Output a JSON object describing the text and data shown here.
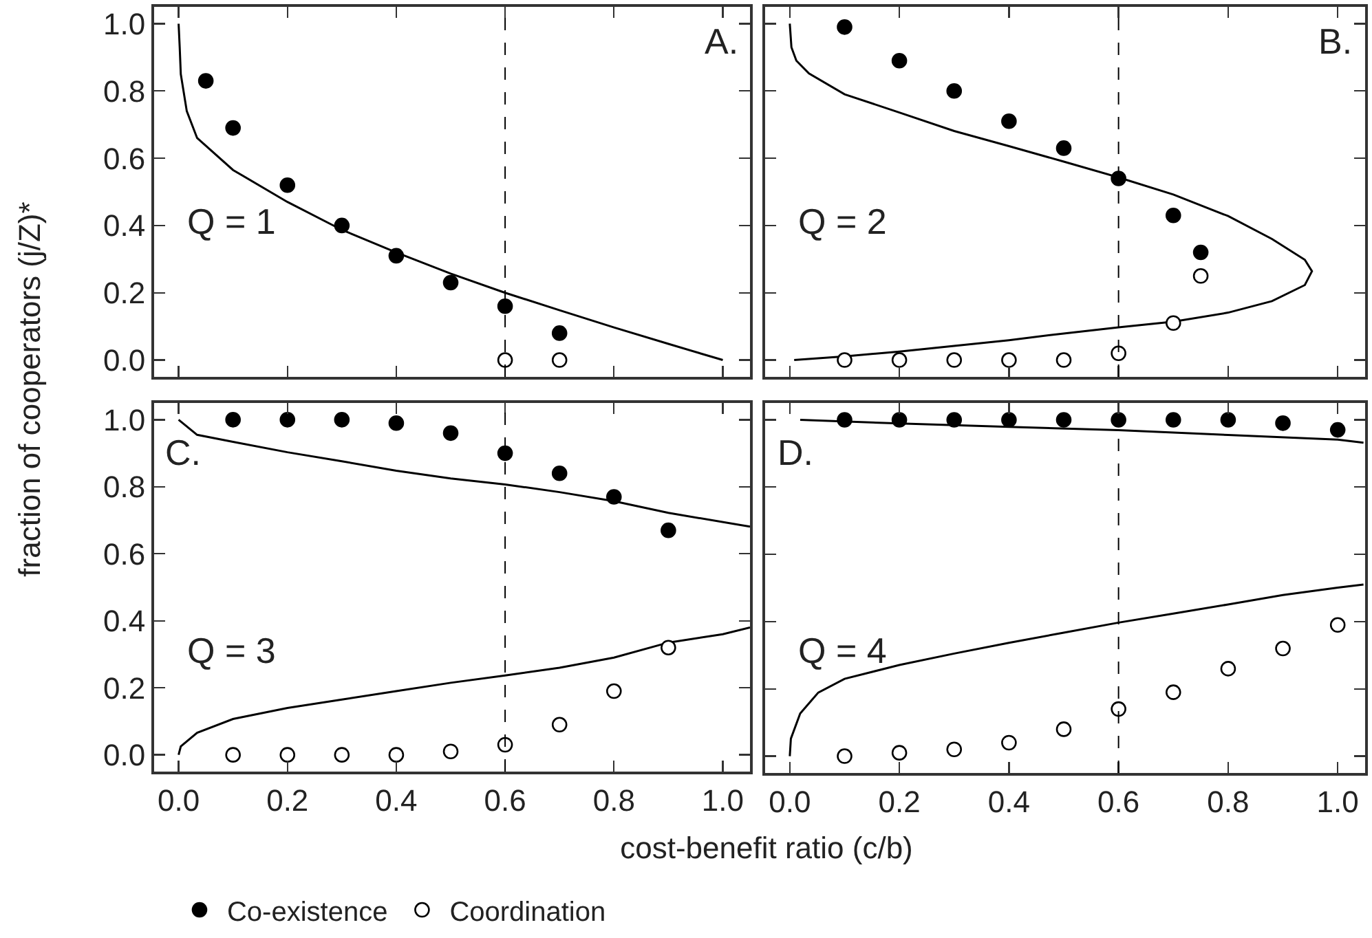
{
  "chart_data": [
    {
      "type": "scatter",
      "ylabel": "fraction of cooperators (j/Z)*",
      "annotations": [
        "A.",
        "Q = 1"
      ],
      "xlim": [
        -0.045,
        1.05
      ],
      "ylim": [
        -0.05,
        1.05
      ],
      "xticks": [
        {
          "value": 0,
          "label": null
        },
        {
          "value": 0.2,
          "label": null
        },
        {
          "value": 0.4,
          "label": null
        },
        {
          "value": 0.6,
          "label": null
        },
        {
          "value": 0.8,
          "label": null
        },
        {
          "value": 1,
          "label": null
        }
      ],
      "yticks": [
        {
          "value": 0,
          "label": "0.0"
        },
        {
          "value": 0.2,
          "label": "0.2"
        },
        {
          "value": 0.4,
          "label": "0.4"
        },
        {
          "value": 0.6,
          "label": "0.6"
        },
        {
          "value": 0.8,
          "label": "0.8"
        },
        {
          "value": 1,
          "label": "1.0"
        }
      ],
      "tick_labels": "y",
      "grid": false,
      "legend": false,
      "ref_lines": [
        {
          "axis": "x",
          "value": 0.6,
          "color": "#000000",
          "line_style": "dashed"
        }
      ],
      "series": [
        {
          "type": "line",
          "color": "#000000",
          "marker": "none",
          "line_style": "solid",
          "x": [
            0,
            0.002,
            0.004,
            0.015,
            0.034,
            0.1,
            0.2,
            0.3,
            0.4,
            0.5,
            0.6,
            0.7,
            0.8,
            0.9,
            1.0
          ],
          "values": [
            1.0,
            0.93,
            0.85,
            0.74,
            0.66,
            0.565,
            0.47,
            0.387,
            0.32,
            0.257,
            0.2,
            0.148,
            0.097,
            0.048,
            0
          ]
        },
        {
          "type": "scatter",
          "color": "#000000",
          "marker": "circle",
          "x": [
            0.05,
            0.1,
            0.2,
            0.3,
            0.4,
            0.5,
            0.6,
            0.7
          ],
          "values": [
            0.83,
            0.69,
            0.52,
            0.4,
            0.31,
            0.23,
            0.16,
            0.08
          ]
        },
        {
          "type": "scatter",
          "color": "#ffffff",
          "marker": "circle",
          "x": [
            0.6,
            0.7
          ],
          "values": [
            0,
            0
          ]
        }
      ]
    },
    {
      "type": "scatter",
      "annotations": [
        "B.",
        "Q = 2"
      ],
      "xlim": [
        -0.045,
        1.05
      ],
      "ylim": [
        -0.05,
        1.05
      ],
      "xticks": [
        {
          "value": 0,
          "label": null
        },
        {
          "value": 0.2,
          "label": null
        },
        {
          "value": 0.4,
          "label": null
        },
        {
          "value": 0.6,
          "label": null
        },
        {
          "value": 0.8,
          "label": null
        },
        {
          "value": 1,
          "label": null
        }
      ],
      "yticks": [
        {
          "value": 0,
          "label": null
        },
        {
          "value": 0.2,
          "label": null
        },
        {
          "value": 0.4,
          "label": null
        },
        {
          "value": 0.6,
          "label": null
        },
        {
          "value": 0.8,
          "label": null
        },
        {
          "value": 1,
          "label": null
        }
      ],
      "tick_labels": false,
      "grid": false,
      "legend": false,
      "ref_lines": [
        {
          "axis": "x",
          "value": 0.6,
          "color": "#000000",
          "line_style": "dashed"
        }
      ],
      "series": [
        {
          "type": "line",
          "color": "#000000",
          "marker": "none",
          "line_style": "solid",
          "x": [
            0,
            0.003,
            0.012,
            0.035,
            0.1,
            0.2,
            0.3,
            0.4,
            0.5,
            0.6,
            0.7,
            0.8,
            0.88,
            0.94,
            0.953,
            0.94,
            0.88,
            0.8,
            0.7,
            0.6,
            0.5,
            0.4,
            0.3,
            0.2,
            0.1,
            0.008
          ],
          "values": [
            1.0,
            0.93,
            0.89,
            0.852,
            0.79,
            0.736,
            0.681,
            0.636,
            0.59,
            0.543,
            0.492,
            0.428,
            0.36,
            0.298,
            0.264,
            0.223,
            0.175,
            0.141,
            0.114,
            0.097,
            0.079,
            0.059,
            0.042,
            0.025,
            0.011,
            0
          ]
        },
        {
          "type": "scatter",
          "color": "#000000",
          "marker": "circle",
          "x": [
            0.1,
            0.2,
            0.3,
            0.4,
            0.5,
            0.6,
            0.7,
            0.75
          ],
          "values": [
            0.99,
            0.89,
            0.8,
            0.71,
            0.63,
            0.54,
            0.43,
            0.32
          ]
        },
        {
          "type": "scatter",
          "color": "#ffffff",
          "marker": "circle",
          "x": [
            0.1,
            0.2,
            0.3,
            0.4,
            0.5,
            0.6,
            0.7,
            0.75
          ],
          "values": [
            0,
            0,
            0,
            0,
            0,
            0.02,
            0.11,
            0.25
          ]
        }
      ]
    },
    {
      "type": "scatter",
      "xlabel": "cost-benefit ratio (c/b)",
      "annotations": [
        "C.",
        "Q = 3"
      ],
      "xlim": [
        -0.045,
        1.05
      ],
      "ylim": [
        -0.05,
        1.05
      ],
      "xticks": [
        {
          "value": 0,
          "label": "0.0"
        },
        {
          "value": 0.2,
          "label": "0.2"
        },
        {
          "value": 0.4,
          "label": "0.4"
        },
        {
          "value": 0.6,
          "label": "0.6"
        },
        {
          "value": 0.8,
          "label": "0.8"
        },
        {
          "value": 1,
          "label": "1.0"
        }
      ],
      "yticks": [
        {
          "value": 0,
          "label": "0.0"
        },
        {
          "value": 0.2,
          "label": "0.2"
        },
        {
          "value": 0.4,
          "label": "0.4"
        },
        {
          "value": 0.6,
          "label": "0.6"
        },
        {
          "value": 0.8,
          "label": "0.8"
        },
        {
          "value": 1,
          "label": "1.0"
        }
      ],
      "grid": false,
      "legend": "bottom",
      "ref_lines": [
        {
          "axis": "x",
          "value": 0.6,
          "color": "#000000",
          "line_style": "dashed"
        }
      ],
      "series": [
        {
          "type": "line",
          "color": "#000000",
          "marker": "none",
          "line_style": "solid",
          "x": [
            0,
            0.034,
            0.1,
            0.2,
            0.3,
            0.4,
            0.5,
            0.6,
            0.7,
            0.8,
            0.9,
            1.05
          ],
          "values": [
            1.0,
            0.955,
            0.934,
            0.903,
            0.876,
            0.848,
            0.825,
            0.807,
            0.784,
            0.757,
            0.722,
            0.681
          ]
        },
        {
          "type": "line",
          "color": "#000000",
          "marker": "none",
          "line_style": "solid",
          "x": [
            0,
            0.004,
            0.034,
            0.1,
            0.2,
            0.3,
            0.4,
            0.5,
            0.6,
            0.7,
            0.8,
            0.9,
            1.0,
            1.05
          ],
          "values": [
            0,
            0.025,
            0.066,
            0.107,
            0.14,
            0.165,
            0.19,
            0.215,
            0.237,
            0.26,
            0.29,
            0.335,
            0.36,
            0.38
          ]
        },
        {
          "type": "scatter",
          "name": "Co-existence",
          "color": "#000000",
          "marker": "circle",
          "x": [
            0.1,
            0.2,
            0.3,
            0.4,
            0.5,
            0.6,
            0.7,
            0.8,
            0.9
          ],
          "values": [
            1.0,
            1.0,
            1.0,
            0.99,
            0.96,
            0.9,
            0.84,
            0.77,
            0.67
          ]
        },
        {
          "type": "scatter",
          "name": "Coordination",
          "color": "#ffffff",
          "marker": "circle",
          "x": [
            0.1,
            0.2,
            0.3,
            0.4,
            0.5,
            0.6,
            0.7,
            0.8,
            0.9
          ],
          "values": [
            0,
            0,
            0,
            0,
            0.01,
            0.03,
            0.09,
            0.19,
            0.32
          ]
        }
      ]
    },
    {
      "type": "scatter",
      "annotations": [
        "D.",
        "Q = 4"
      ],
      "xlim": [
        -0.045,
        1.05
      ],
      "ylim": [
        -0.05,
        1.05
      ],
      "xticks": [
        {
          "value": 0,
          "label": "0.0"
        },
        {
          "value": 0.2,
          "label": "0.2"
        },
        {
          "value": 0.4,
          "label": "0.4"
        },
        {
          "value": 0.6,
          "label": "0.6"
        },
        {
          "value": 0.8,
          "label": "0.8"
        },
        {
          "value": 1,
          "label": "1.0"
        }
      ],
      "yticks": [
        {
          "value": 0,
          "label": null
        },
        {
          "value": 0.2,
          "label": null
        },
        {
          "value": 0.4,
          "label": null
        },
        {
          "value": 0.6,
          "label": null
        },
        {
          "value": 0.8,
          "label": null
        },
        {
          "value": 1,
          "label": null
        }
      ],
      "tick_labels": "x",
      "grid": false,
      "legend": false,
      "ref_lines": [
        {
          "axis": "x",
          "value": 0.6,
          "color": "#000000",
          "line_style": "dashed"
        }
      ],
      "series": [
        {
          "type": "line",
          "color": "#000000",
          "marker": "none",
          "line_style": "solid",
          "x": [
            0.019,
            0.2,
            0.4,
            0.6,
            0.8,
            1.0,
            1.047
          ],
          "values": [
            1.0,
            0.989,
            0.979,
            0.969,
            0.955,
            0.941,
            0.932
          ]
        },
        {
          "type": "line",
          "color": "#000000",
          "marker": "none",
          "line_style": "solid",
          "x": [
            0,
            0.002,
            0.019,
            0.052,
            0.1,
            0.2,
            0.3,
            0.4,
            0.5,
            0.6,
            0.7,
            0.8,
            0.9,
            1.0,
            1.047
          ],
          "values": [
            0,
            0.052,
            0.127,
            0.189,
            0.23,
            0.271,
            0.305,
            0.337,
            0.367,
            0.397,
            0.424,
            0.451,
            0.479,
            0.501,
            0.51
          ]
        },
        {
          "type": "scatter",
          "color": "#000000",
          "marker": "circle",
          "x": [
            0.1,
            0.2,
            0.3,
            0.4,
            0.5,
            0.6,
            0.7,
            0.8,
            0.9,
            1.0
          ],
          "values": [
            1.0,
            1.0,
            1.0,
            1.0,
            1.0,
            1.0,
            1.0,
            1.0,
            0.99,
            0.97
          ]
        },
        {
          "type": "scatter",
          "color": "#ffffff",
          "marker": "circle",
          "x": [
            0.1,
            0.2,
            0.3,
            0.4,
            0.5,
            0.6,
            0.7,
            0.8,
            0.9,
            1.0
          ],
          "values": [
            0,
            0.01,
            0.02,
            0.04,
            0.08,
            0.14,
            0.19,
            0.26,
            0.32,
            0.39
          ]
        }
      ]
    }
  ]
}
